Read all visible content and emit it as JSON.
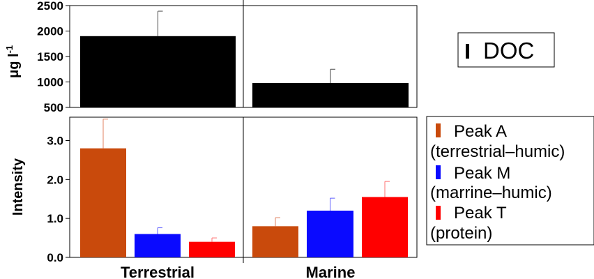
{
  "chart_data": [
    {
      "type": "bar",
      "panel": "top",
      "categories": [
        "Terrestrial",
        "Marine"
      ],
      "series": [
        {
          "name": "DOC",
          "color": "#000000",
          "values": [
            1900,
            980
          ],
          "errors": [
            490,
            270
          ]
        }
      ],
      "ylabel": "μg l",
      "ylabel_sup": "-1",
      "ylim": [
        500,
        2500
      ],
      "yticks": [
        "500",
        "1000",
        "1500",
        "2000",
        "2500"
      ],
      "ytick_values": [
        500,
        1000,
        1500,
        2000,
        2500
      ],
      "grid": false,
      "legend": {
        "placement": "right",
        "entries": [
          {
            "label": "DOC",
            "color": "#000000"
          }
        ]
      }
    },
    {
      "type": "bar",
      "panel": "bottom",
      "categories": [
        "Terrestrial",
        "Marine"
      ],
      "series": [
        {
          "name": "Peak A",
          "color": "#C94A0C",
          "errors_color": "#E08060",
          "values": [
            2.8,
            0.8
          ],
          "errors": [
            0.75,
            0.22
          ]
        },
        {
          "name": "Peak M",
          "color": "#0A0AFF",
          "errors_color": "#6060FF",
          "values": [
            0.6,
            1.2
          ],
          "errors": [
            0.16,
            0.32
          ]
        },
        {
          "name": "Peak T",
          "color": "#FF0000",
          "errors_color": "#FF7070",
          "values": [
            0.4,
            1.55
          ],
          "errors": [
            0.1,
            0.4
          ]
        }
      ],
      "ylabel": "Intensity",
      "ylim": [
        0.0,
        3.6
      ],
      "yticks": [
        "0.0",
        "1.0",
        "2.0",
        "3.0"
      ],
      "ytick_values": [
        0,
        1,
        2,
        3
      ],
      "grid": false,
      "legend": {
        "placement": "right",
        "entries": [
          {
            "label": "Peak A",
            "sublabel": "(terrestrial–humic)",
            "color": "#C94A0C"
          },
          {
            "label": "Peak M",
            "sublabel": "(marrine–humic)",
            "color": "#0A0AFF"
          },
          {
            "label": "Peak T",
            "sublabel": "(protein)",
            "color": "#FF0000"
          }
        ]
      }
    }
  ]
}
